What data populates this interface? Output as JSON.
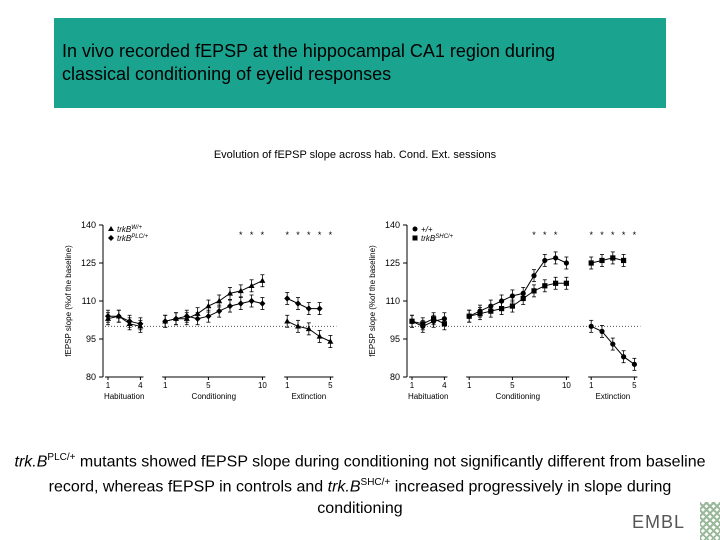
{
  "header": {
    "title_line1": "In vivo recorded fEPSP at the hippocampal CA1 region during",
    "title_line2": "classical conditioning of eyelid responses",
    "color": "#1aa38f"
  },
  "chart_subtitle": "Evolution of fEPSP slope across hab. Cond. Ext. sessions",
  "chart_data": [
    {
      "type": "line",
      "title": "",
      "ylabel": "fEPSP slope (%of the baseline)",
      "ylim": [
        80,
        140
      ],
      "yticks": [
        "80",
        "95",
        "110",
        "125",
        "140"
      ],
      "sessions": [
        1,
        2,
        3,
        4,
        5,
        6,
        7,
        8,
        9,
        10,
        11,
        12,
        13,
        14,
        15,
        16,
        17,
        18,
        19
      ],
      "xticks": [
        "1",
        "4",
        "1",
        "5",
        "10",
        "1",
        "5"
      ],
      "groups": [
        "Habituation",
        "Conditioning",
        "Extinction"
      ],
      "baseline": 100,
      "significance_marks": "*",
      "series": [
        {
          "name": "trkB W/+",
          "name_base": "trkB",
          "name_sup": "W/+",
          "marker": "triangle",
          "sessions": [
            1,
            2,
            3,
            4,
            5,
            6,
            7,
            8,
            9,
            10,
            11,
            12,
            13,
            14,
            15,
            16,
            17,
            18,
            19
          ],
          "values": [
            103,
            104,
            101,
            100,
            102,
            103,
            103,
            105,
            108,
            110,
            113,
            114,
            116,
            118,
            102,
            100,
            99,
            96,
            94
          ]
        },
        {
          "name": "trkB PLC/+",
          "name_base": "trkB",
          "name_sup": "PLC/+",
          "marker": "diamond",
          "sessions": [
            1,
            2,
            3,
            4,
            5,
            6,
            7,
            8,
            9,
            10,
            11,
            12,
            13,
            14,
            15,
            16,
            17,
            18
          ],
          "values": [
            104,
            104,
            102,
            101,
            102,
            103,
            104,
            103,
            104,
            106,
            108,
            109,
            110,
            109,
            111,
            109,
            107,
            107
          ]
        }
      ]
    },
    {
      "type": "line",
      "title": "",
      "ylabel": "fEPSP slope (%of the baseline)",
      "ylim": [
        80,
        140
      ],
      "yticks": [
        "80",
        "95",
        "110",
        "125",
        "140"
      ],
      "sessions": [
        1,
        2,
        3,
        4,
        5,
        6,
        7,
        8,
        9,
        10,
        11,
        12,
        13,
        14,
        15,
        16,
        17,
        18,
        19
      ],
      "xticks": [
        "1",
        "4",
        "1",
        "5",
        "10",
        "1",
        "5"
      ],
      "groups": [
        "Habituation",
        "Conditioning",
        "Extinction"
      ],
      "baseline": 100,
      "significance_marks": "*",
      "series": [
        {
          "name": "+/+",
          "name_base": "+/+",
          "name_sup": "",
          "marker": "circle",
          "sessions": [
            1,
            2,
            3,
            4,
            5,
            6,
            7,
            8,
            9,
            10,
            11,
            12,
            13,
            14,
            15,
            16,
            17,
            18,
            19
          ],
          "values": [
            102,
            100,
            102,
            103,
            104,
            106,
            108,
            110,
            112,
            113,
            120,
            126,
            127,
            125,
            100,
            98,
            93,
            88,
            85
          ]
        },
        {
          "name": "trkB SHC/+",
          "name_base": "trkB",
          "name_sup": "SHC/+",
          "marker": "square",
          "sessions": [
            1,
            2,
            3,
            4,
            5,
            6,
            7,
            8,
            9,
            10,
            11,
            12,
            13,
            14,
            15,
            16,
            17,
            18
          ],
          "values": [
            102,
            101,
            103,
            101,
            104,
            105,
            106,
            107,
            108,
            111,
            114,
            116,
            117,
            117,
            125,
            126,
            127,
            126
          ]
        }
      ]
    }
  ],
  "caption": {
    "p1": "trk.B",
    "sup1": "PLC/+",
    "p2": " mutants showed fEPSP slope during conditioning not significantly different from baseline record, whereas fEPSP in controls and ",
    "p3": "trk.B",
    "sup2": "SHC/+",
    "p4": " increased progressively in slope during conditioning"
  },
  "logo": {
    "text": "EMBL"
  }
}
